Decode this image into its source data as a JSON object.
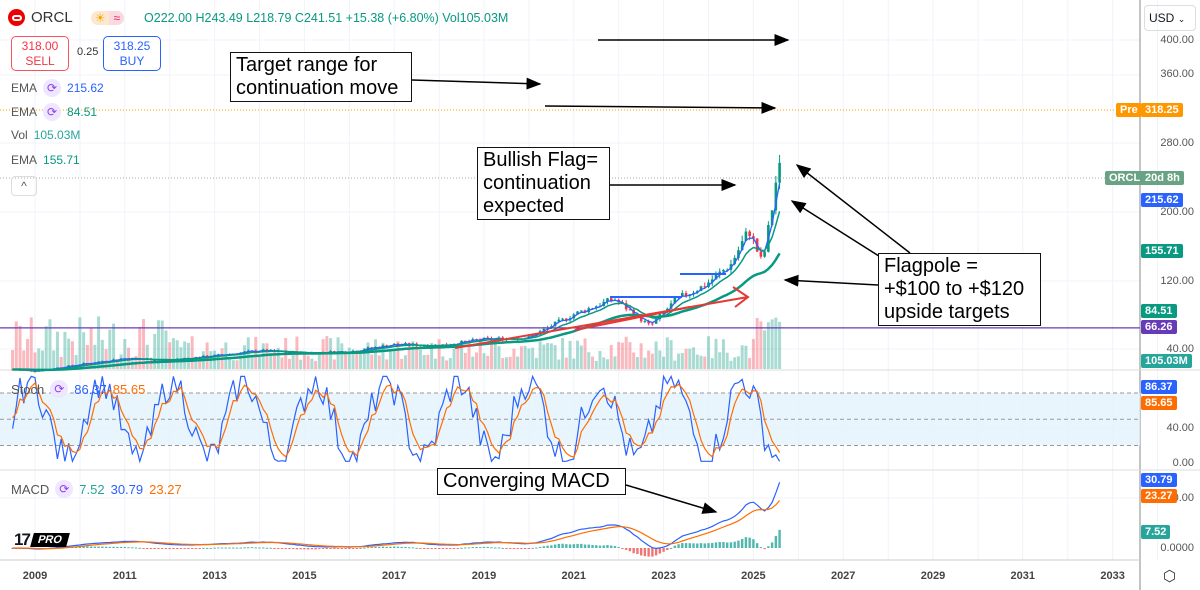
{
  "header": {
    "symbol": "ORCL",
    "open": "O222.00",
    "high": "H243.49",
    "low": "L218.79",
    "close": "C241.51",
    "change": "+15.38 (+6.80%)",
    "volume": "Vol105.03M"
  },
  "trade": {
    "sell_price": "318.00",
    "sell_label": "SELL",
    "spread": "0.25",
    "buy_price": "318.25",
    "buy_label": "BUY"
  },
  "legends": {
    "ema1_label": "EMA",
    "ema1_value": "215.62",
    "ema2_label": "EMA",
    "ema2_value": "84.51",
    "vol_label": "Vol",
    "vol_value": "105.03M",
    "ema3_label": "EMA",
    "ema3_value": "155.71",
    "collapse": "^",
    "stoch_label": "Stoch",
    "stoch_k": "86.37",
    "stoch_d": "85.65",
    "macd_label": "MACD",
    "macd_hist": "7.52",
    "macd_line": "30.79",
    "macd_signal": "23.27"
  },
  "currency": "USD",
  "price_axis": [
    "400.00",
    "360.00",
    "280.00",
    "200.00",
    "120.00",
    "40.00"
  ],
  "stoch_axis": [
    "40.00",
    "0.00"
  ],
  "macd_axis": [
    "20.00",
    "0.0000"
  ],
  "tags": {
    "pre_label": "Pre",
    "pre_value": "318.25",
    "sym": "ORCL",
    "countdown": "20d 8h",
    "ema_fast": "215.62",
    "ema_mid": "155.71",
    "ema_slow": "84.51",
    "hline": "66.26",
    "volume": "105.03M",
    "stoch_k": "86.37",
    "stoch_d": "85.65",
    "macd_line": "30.79",
    "macd_signal": "23.27",
    "macd_hist": "7.52"
  },
  "years": [
    "2009",
    "2011",
    "2013",
    "2015",
    "2017",
    "2019",
    "2021",
    "2023",
    "2025",
    "2027",
    "2029",
    "2031",
    "2033"
  ],
  "annotations": {
    "target": "Target range for continuation move",
    "flag": "Bullish Flag= continuation expected",
    "flagpole": "Flagpole = +$100 to +$120 upside targets",
    "macd": "Converging MACD"
  },
  "logo": "TV PRO",
  "colors": {
    "up": "#089981",
    "down": "#f23645",
    "ema_fast": "#2962ff",
    "ema_mid": "#089981",
    "hline": "#673ab7",
    "pre": "#ff9800",
    "stoch_d": "#ff6d00"
  },
  "chart_data": {
    "type": "candlestick",
    "series_anchors": [
      [
        2008.5,
        18
      ],
      [
        2009,
        16
      ],
      [
        2010,
        24
      ],
      [
        2011,
        31
      ],
      [
        2012,
        29
      ],
      [
        2013,
        34
      ],
      [
        2014,
        40
      ],
      [
        2015,
        37
      ],
      [
        2016,
        39
      ],
      [
        2017,
        47
      ],
      [
        2018,
        46
      ],
      [
        2019,
        53
      ],
      [
        2020,
        55
      ],
      [
        2021,
        82
      ],
      [
        2021.9,
        100
      ],
      [
        2022.7,
        68
      ],
      [
        2023.3,
        100
      ],
      [
        2023.9,
        115
      ],
      [
        2024.5,
        140
      ],
      [
        2024.9,
        180
      ],
      [
        2025.2,
        140
      ],
      [
        2025.45,
        215
      ],
      [
        2025.55,
        255
      ],
      [
        2025.65,
        241.51
      ]
    ],
    "price_ylim": [
      0,
      420
    ],
    "hline": 66.26,
    "pre_market": 318.25
  }
}
